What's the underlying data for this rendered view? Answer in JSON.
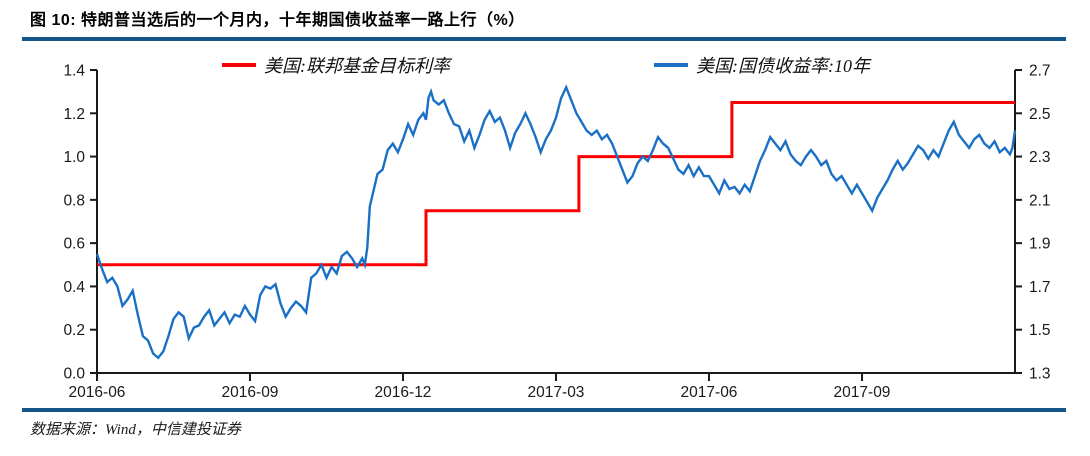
{
  "title": "图 10: 特朗普当选后的一个月内，十年期国债收益率一路上行（%）",
  "source": "数据来源：Wind，中信建投证券",
  "colors": {
    "rule_navy": "#15568A",
    "fed_red": "#FB0000",
    "treasury_blue": "#1A70C4",
    "axis": "#1A1A1A"
  },
  "legend": [
    {
      "label": "美国:联邦基金目标利率",
      "color": "#FB0000"
    },
    {
      "label": "美国:国债收益率:10年",
      "color": "#1A70C4"
    }
  ],
  "chart_data": {
    "type": "line",
    "title": "图 10: 特朗普当选后的一个月内，十年期国债收益率一路上行（%）",
    "x_unit": "months since 2016-06",
    "x_range": [
      0,
      18
    ],
    "x_ticks": [
      {
        "pos": 0,
        "label": "2016-06"
      },
      {
        "pos": 3,
        "label": "2016-09"
      },
      {
        "pos": 6,
        "label": "2016-12"
      },
      {
        "pos": 9,
        "label": "2017-03"
      },
      {
        "pos": 12,
        "label": "2017-06"
      },
      {
        "pos": 15,
        "label": "2017-09"
      }
    ],
    "left_axis": {
      "min": 0.0,
      "max": 1.4,
      "tick_labels": [
        "0.0",
        "0.2",
        "0.4",
        "0.6",
        "0.8",
        "1.0",
        "1.2",
        "1.4"
      ]
    },
    "right_axis": {
      "min": 1.3,
      "max": 2.7,
      "tick_labels": [
        "1.3",
        "1.5",
        "1.7",
        "1.9",
        "2.1",
        "2.3",
        "2.5",
        "2.7"
      ]
    },
    "grid": false,
    "legend_position": "top",
    "series": [
      {
        "name": "美国:联邦基金目标利率",
        "axis": "left",
        "color": "#FB0000",
        "width": 3,
        "step": true,
        "points": [
          [
            0,
            0.5
          ],
          [
            6.45,
            0.5
          ],
          [
            6.45,
            0.75
          ],
          [
            9.45,
            0.75
          ],
          [
            9.45,
            1.0
          ],
          [
            12.45,
            1.0
          ],
          [
            12.45,
            1.25
          ],
          [
            18,
            1.25
          ]
        ]
      },
      {
        "name": "美国:国债收益率:10年",
        "axis": "right",
        "color": "#1A70C4",
        "width": 2.4,
        "step": false,
        "points": [
          [
            0.0,
            1.85
          ],
          [
            0.1,
            1.78
          ],
          [
            0.2,
            1.72
          ],
          [
            0.3,
            1.74
          ],
          [
            0.4,
            1.7
          ],
          [
            0.5,
            1.61
          ],
          [
            0.6,
            1.64
          ],
          [
            0.7,
            1.68
          ],
          [
            0.8,
            1.57
          ],
          [
            0.9,
            1.47
          ],
          [
            1.0,
            1.45
          ],
          [
            1.1,
            1.39
          ],
          [
            1.2,
            1.37
          ],
          [
            1.3,
            1.4
          ],
          [
            1.4,
            1.47
          ],
          [
            1.5,
            1.55
          ],
          [
            1.6,
            1.58
          ],
          [
            1.7,
            1.56
          ],
          [
            1.8,
            1.46
          ],
          [
            1.9,
            1.51
          ],
          [
            2.0,
            1.52
          ],
          [
            2.1,
            1.56
          ],
          [
            2.2,
            1.59
          ],
          [
            2.3,
            1.52
          ],
          [
            2.4,
            1.55
          ],
          [
            2.5,
            1.58
          ],
          [
            2.6,
            1.53
          ],
          [
            2.7,
            1.57
          ],
          [
            2.8,
            1.56
          ],
          [
            2.9,
            1.61
          ],
          [
            3.0,
            1.57
          ],
          [
            3.1,
            1.54
          ],
          [
            3.2,
            1.66
          ],
          [
            3.3,
            1.7
          ],
          [
            3.4,
            1.69
          ],
          [
            3.5,
            1.71
          ],
          [
            3.6,
            1.62
          ],
          [
            3.7,
            1.56
          ],
          [
            3.8,
            1.6
          ],
          [
            3.9,
            1.63
          ],
          [
            4.0,
            1.61
          ],
          [
            4.1,
            1.58
          ],
          [
            4.2,
            1.74
          ],
          [
            4.3,
            1.76
          ],
          [
            4.4,
            1.8
          ],
          [
            4.5,
            1.74
          ],
          [
            4.6,
            1.79
          ],
          [
            4.7,
            1.76
          ],
          [
            4.8,
            1.84
          ],
          [
            4.9,
            1.86
          ],
          [
            5.0,
            1.83
          ],
          [
            5.1,
            1.79
          ],
          [
            5.2,
            1.83
          ],
          [
            5.25,
            1.8
          ],
          [
            5.3,
            1.88
          ],
          [
            5.35,
            2.07
          ],
          [
            5.4,
            2.12
          ],
          [
            5.5,
            2.22
          ],
          [
            5.6,
            2.24
          ],
          [
            5.7,
            2.33
          ],
          [
            5.8,
            2.36
          ],
          [
            5.9,
            2.32
          ],
          [
            6.0,
            2.38
          ],
          [
            6.1,
            2.45
          ],
          [
            6.2,
            2.4
          ],
          [
            6.3,
            2.47
          ],
          [
            6.4,
            2.5
          ],
          [
            6.45,
            2.47
          ],
          [
            6.5,
            2.57
          ],
          [
            6.55,
            2.6
          ],
          [
            6.6,
            2.56
          ],
          [
            6.7,
            2.54
          ],
          [
            6.8,
            2.56
          ],
          [
            6.9,
            2.5
          ],
          [
            7.0,
            2.45
          ],
          [
            7.1,
            2.44
          ],
          [
            7.2,
            2.37
          ],
          [
            7.3,
            2.42
          ],
          [
            7.4,
            2.34
          ],
          [
            7.5,
            2.4
          ],
          [
            7.6,
            2.47
          ],
          [
            7.7,
            2.51
          ],
          [
            7.8,
            2.46
          ],
          [
            7.9,
            2.48
          ],
          [
            8.0,
            2.42
          ],
          [
            8.1,
            2.34
          ],
          [
            8.2,
            2.41
          ],
          [
            8.3,
            2.45
          ],
          [
            8.4,
            2.5
          ],
          [
            8.5,
            2.45
          ],
          [
            8.6,
            2.39
          ],
          [
            8.7,
            2.32
          ],
          [
            8.8,
            2.38
          ],
          [
            8.9,
            2.42
          ],
          [
            9.0,
            2.48
          ],
          [
            9.1,
            2.57
          ],
          [
            9.2,
            2.62
          ],
          [
            9.3,
            2.56
          ],
          [
            9.4,
            2.5
          ],
          [
            9.5,
            2.46
          ],
          [
            9.6,
            2.42
          ],
          [
            9.7,
            2.4
          ],
          [
            9.8,
            2.42
          ],
          [
            9.9,
            2.38
          ],
          [
            10.0,
            2.4
          ],
          [
            10.1,
            2.36
          ],
          [
            10.2,
            2.3
          ],
          [
            10.3,
            2.24
          ],
          [
            10.4,
            2.18
          ],
          [
            10.5,
            2.21
          ],
          [
            10.6,
            2.27
          ],
          [
            10.7,
            2.3
          ],
          [
            10.8,
            2.28
          ],
          [
            10.9,
            2.33
          ],
          [
            11.0,
            2.39
          ],
          [
            11.1,
            2.36
          ],
          [
            11.2,
            2.34
          ],
          [
            11.3,
            2.29
          ],
          [
            11.4,
            2.24
          ],
          [
            11.5,
            2.22
          ],
          [
            11.6,
            2.26
          ],
          [
            11.7,
            2.21
          ],
          [
            11.8,
            2.25
          ],
          [
            11.9,
            2.21
          ],
          [
            12.0,
            2.21
          ],
          [
            12.1,
            2.17
          ],
          [
            12.2,
            2.13
          ],
          [
            12.3,
            2.19
          ],
          [
            12.4,
            2.15
          ],
          [
            12.5,
            2.16
          ],
          [
            12.6,
            2.13
          ],
          [
            12.7,
            2.17
          ],
          [
            12.8,
            2.14
          ],
          [
            12.9,
            2.21
          ],
          [
            13.0,
            2.28
          ],
          [
            13.1,
            2.33
          ],
          [
            13.2,
            2.39
          ],
          [
            13.3,
            2.36
          ],
          [
            13.4,
            2.33
          ],
          [
            13.5,
            2.37
          ],
          [
            13.6,
            2.31
          ],
          [
            13.7,
            2.28
          ],
          [
            13.8,
            2.26
          ],
          [
            13.9,
            2.3
          ],
          [
            14.0,
            2.33
          ],
          [
            14.1,
            2.3
          ],
          [
            14.2,
            2.26
          ],
          [
            14.3,
            2.28
          ],
          [
            14.4,
            2.22
          ],
          [
            14.5,
            2.19
          ],
          [
            14.6,
            2.21
          ],
          [
            14.7,
            2.17
          ],
          [
            14.8,
            2.13
          ],
          [
            14.9,
            2.17
          ],
          [
            15.0,
            2.13
          ],
          [
            15.1,
            2.09
          ],
          [
            15.2,
            2.05
          ],
          [
            15.3,
            2.11
          ],
          [
            15.4,
            2.15
          ],
          [
            15.5,
            2.19
          ],
          [
            15.6,
            2.24
          ],
          [
            15.7,
            2.28
          ],
          [
            15.8,
            2.24
          ],
          [
            15.9,
            2.27
          ],
          [
            16.0,
            2.31
          ],
          [
            16.1,
            2.35
          ],
          [
            16.2,
            2.33
          ],
          [
            16.3,
            2.29
          ],
          [
            16.4,
            2.33
          ],
          [
            16.5,
            2.3
          ],
          [
            16.6,
            2.36
          ],
          [
            16.7,
            2.42
          ],
          [
            16.8,
            2.46
          ],
          [
            16.9,
            2.4
          ],
          [
            17.0,
            2.37
          ],
          [
            17.1,
            2.34
          ],
          [
            17.2,
            2.38
          ],
          [
            17.3,
            2.4
          ],
          [
            17.4,
            2.36
          ],
          [
            17.5,
            2.34
          ],
          [
            17.6,
            2.37
          ],
          [
            17.7,
            2.32
          ],
          [
            17.8,
            2.34
          ],
          [
            17.9,
            2.31
          ],
          [
            17.95,
            2.34
          ],
          [
            18.0,
            2.42
          ]
        ]
      }
    ]
  }
}
